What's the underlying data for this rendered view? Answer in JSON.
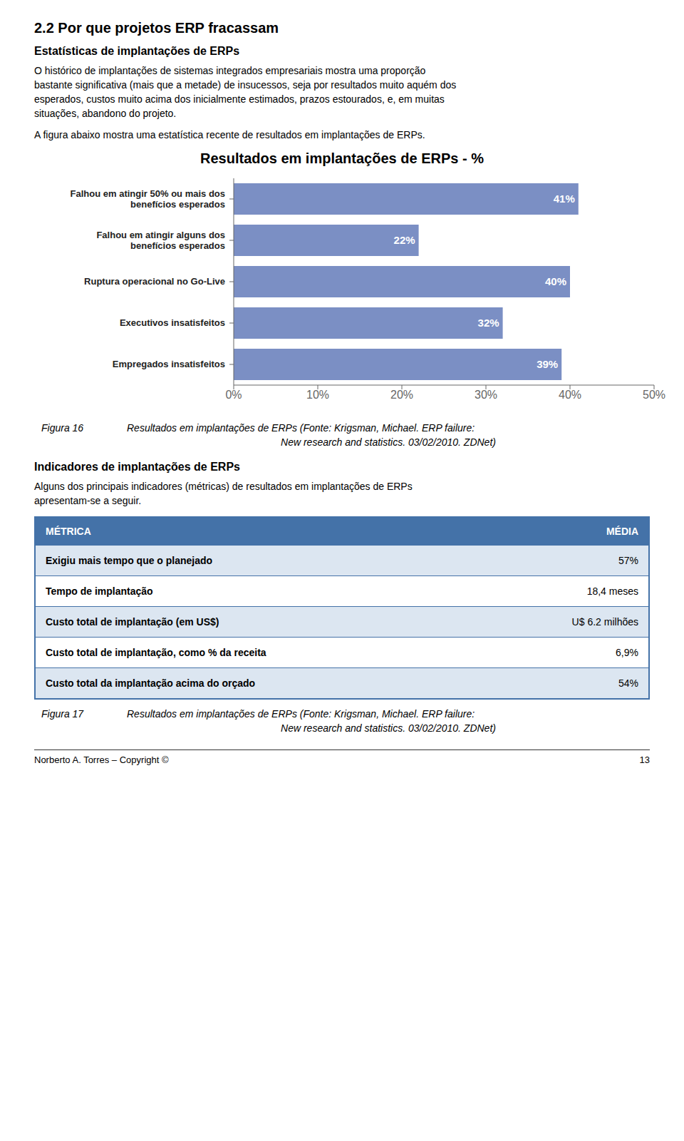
{
  "chart_data": [
    {
      "type": "text",
      "title": "2.2    Por que projetos ERP fracassam"
    },
    {
      "type": "text",
      "title": "Estatísticas de implantações de ERPs",
      "annotations": [
        "O histórico de implantações de sistemas integrados empresariais mostra uma proporção",
        "bastante significativa (mais que a metade) de insucessos, seja por resultados muito aquém dos",
        "esperados, custos muito acima dos inicialmente estimados, prazos estourados, e, em muitas",
        "situações, abandono do projeto.",
        "A figura abaixo mostra uma estatística recente de resultados em implantações de ERPs."
      ]
    },
    {
      "type": "bar",
      "orientation": "horizontal",
      "title": "Resultados em implantações de ERPs - %",
      "categories": [
        "Falhou em atingir 50% ou mais dos\nbenefícios esperados",
        "Falhou em atingir alguns dos\nbenefícios esperados",
        "Ruptura operacional no Go-Live",
        "Executivos insatisfeitos",
        "Empregados insatisfeitos"
      ],
      "values": [
        41,
        22,
        40,
        32,
        39
      ],
      "value_labels": [
        "41%",
        "22%",
        "40%",
        "32%",
        "39%"
      ],
      "color": "#7b8fc4",
      "xlim": [
        0,
        50
      ],
      "xticks": [
        {
          "value": 0,
          "label": "0%"
        },
        {
          "value": 10,
          "label": "10%"
        },
        {
          "value": 20,
          "label": "20%"
        },
        {
          "value": 30,
          "label": "30%"
        },
        {
          "value": 40,
          "label": "40%"
        },
        {
          "value": 50,
          "label": "50%"
        }
      ],
      "grid": false,
      "data_labels": true,
      "annotations": [
        "Figura 16",
        "Resultados em implantações de ERPs (Fonte: Krigsman, Michael.  ERP failure:",
        "New research and statistics. 03/02/2010. ZDNet)"
      ]
    },
    {
      "type": "text",
      "title": "Indicadores de implantações de ERPs",
      "annotations": [
        "Alguns dos principais indicadores (métricas) de resultados em implantações de ERPs",
        "apresentam-se a seguir."
      ]
    },
    {
      "type": "table",
      "header": [
        "MÉTRICA",
        "MÉDIA"
      ],
      "rows": [
        [
          "Exigiu mais tempo que o planejado",
          "57%"
        ],
        [
          "Tempo de implantação",
          "18,4 meses"
        ],
        [
          "Custo total de implantação (em US$)",
          "U$ 6.2 milhões"
        ],
        [
          "Custo total de implantação, como % da receita",
          "6,9%"
        ],
        [
          "Custo total da implantação acima do orçado",
          "54%"
        ]
      ],
      "color": "#4472a8",
      "colors": [
        "#dce6f1",
        "#ffffff",
        "#dce6f1",
        "#ffffff",
        "#dce6f1"
      ],
      "annotations": [
        "Figura 17",
        "Resultados em implantações de ERPs (Fonte: Krigsman, Michael.  ERP failure:",
        "New research and statistics. 03/02/2010. ZDNet)"
      ]
    },
    {
      "type": "text",
      "annotations": [
        "Norberto A. Torres – Copyright ©",
        "13"
      ]
    }
  ]
}
